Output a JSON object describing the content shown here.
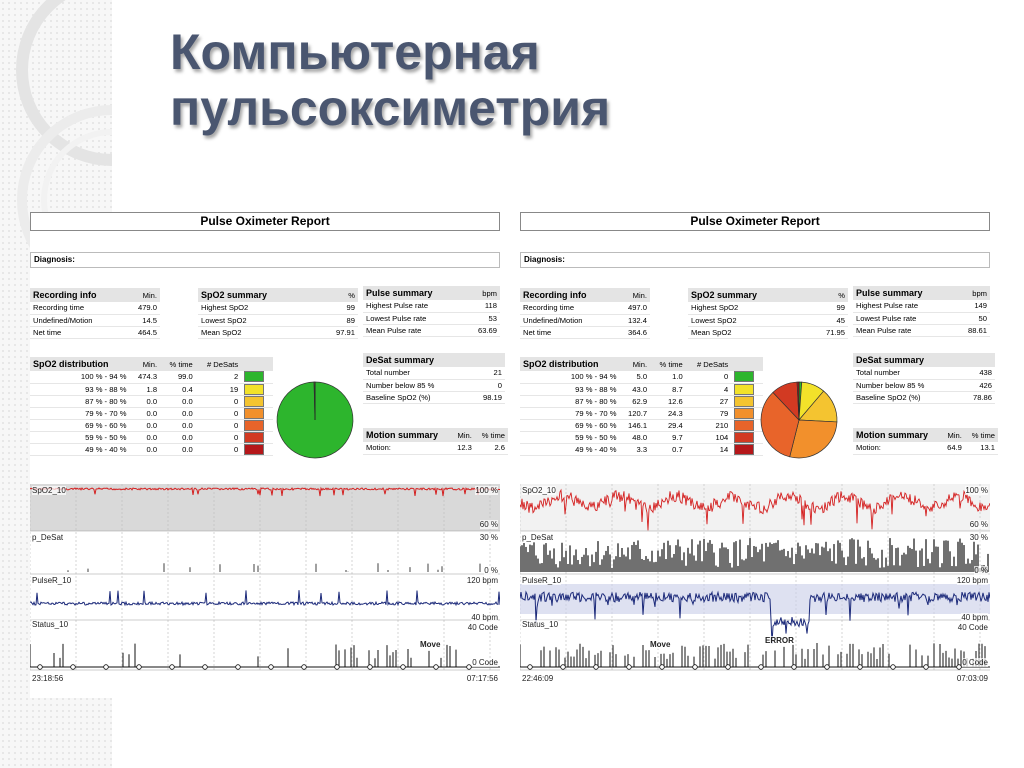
{
  "slide": {
    "title": "Компьютерная пульсоксиметрия"
  },
  "colors": {
    "title": "#4a5670",
    "spo2_trace": "#d42020",
    "pulse_trace": "#1c2a7a"
  },
  "distribution_swatches": [
    "#2db52d",
    "#f2e22a",
    "#f4c430",
    "#f2902c",
    "#e8642a",
    "#d23a22",
    "#b5171a"
  ],
  "reports": [
    {
      "title": "Pulse Oximeter Report",
      "diagnosis_label": "Diagnosis:",
      "recording": {
        "header": "Recording info",
        "unit": "Min.",
        "rows": [
          {
            "label": "Recording time",
            "value": "479.0"
          },
          {
            "label": "Undefined/Motion",
            "value": "14.5"
          },
          {
            "label": "Net time",
            "value": "464.5"
          }
        ]
      },
      "spo2": {
        "header": "SpO2 summary",
        "unit": "%",
        "rows": [
          {
            "label": "Highest SpO2",
            "value": "99"
          },
          {
            "label": "Lowest SpO2",
            "value": "89"
          },
          {
            "label": "Mean SpO2",
            "value": "97.91"
          }
        ]
      },
      "pulse": {
        "header": "Pulse summary",
        "unit": "bpm",
        "rows": [
          {
            "label": "Highest Pulse rate",
            "value": "118"
          },
          {
            "label": "Lowest Pulse rate",
            "value": "53"
          },
          {
            "label": "Mean Pulse rate",
            "value": "63.69"
          }
        ]
      },
      "distribution": {
        "header": "SpO2 distribution",
        "col_min": "Min.",
        "col_time": "% time",
        "col_desats": "# DeSats",
        "rows": [
          {
            "range": "100 % - 94 %",
            "min": "474.3",
            "time": "99.0",
            "desats": "2"
          },
          {
            "range": "93 % - 88 %",
            "min": "1.8",
            "time": "0.4",
            "desats": "19"
          },
          {
            "range": "87 % - 80 %",
            "min": "0.0",
            "time": "0.0",
            "desats": "0"
          },
          {
            "range": "79 % - 70 %",
            "min": "0.0",
            "time": "0.0",
            "desats": "0"
          },
          {
            "range": "69 % - 60 %",
            "min": "0.0",
            "time": "0.0",
            "desats": "0"
          },
          {
            "range": "59 % - 50 %",
            "min": "0.0",
            "time": "0.0",
            "desats": "0"
          },
          {
            "range": "49 % - 40 %",
            "min": "0.0",
            "time": "0.0",
            "desats": "0"
          }
        ]
      },
      "desat": {
        "header": "DeSat summary",
        "rows": [
          {
            "label": "Total number",
            "value": "21"
          },
          {
            "label": "Number below 85 %",
            "value": "0"
          },
          {
            "label": "Baseline SpO2 (%)",
            "value": "98.19"
          }
        ]
      },
      "motion": {
        "header": "Motion summary",
        "col_min": "Min.",
        "col_time": "% time",
        "label": "Motion:",
        "min": "12.3",
        "time": "2.6"
      },
      "traces": {
        "spo2": "SpO2_10",
        "spo2_top": "100 %",
        "spo2_bottom": "60 %",
        "desat": "p_DeSat",
        "desat_top": "30 %",
        "desat_bottom": "0 %",
        "pulse": "PulseR_10",
        "pulse_top": "120 bpm",
        "pulse_bottom": "40 bpm",
        "status": "Status_10",
        "code": "40 Code",
        "move": "Move",
        "code_bottom": "0 Code",
        "time_start": "23:18:56",
        "time_end": "07:17:56"
      }
    },
    {
      "title": "Pulse Oximeter Report",
      "diagnosis_label": "Diagnosis:",
      "recording": {
        "header": "Recording info",
        "unit": "Min.",
        "rows": [
          {
            "label": "Recording time",
            "value": "497.0"
          },
          {
            "label": "Undefined/Motion",
            "value": "132.4"
          },
          {
            "label": "Net time",
            "value": "364.6"
          }
        ]
      },
      "spo2": {
        "header": "SpO2 summary",
        "unit": "%",
        "rows": [
          {
            "label": "Highest SpO2",
            "value": "99"
          },
          {
            "label": "Lowest SpO2",
            "value": "45"
          },
          {
            "label": "Mean SpO2",
            "value": "71.95"
          }
        ]
      },
      "pulse": {
        "header": "Pulse summary",
        "unit": "bpm",
        "rows": [
          {
            "label": "Highest Pulse rate",
            "value": "149"
          },
          {
            "label": "Lowest Pulse rate",
            "value": "50"
          },
          {
            "label": "Mean Pulse rate",
            "value": "88.61"
          }
        ]
      },
      "distribution": {
        "header": "SpO2 distribution",
        "col_min": "Min.",
        "col_time": "% time",
        "col_desats": "# DeSats",
        "rows": [
          {
            "range": "100 % - 94 %",
            "min": "5.0",
            "time": "1.0",
            "desats": "0"
          },
          {
            "range": "93 % - 88 %",
            "min": "43.0",
            "time": "8.7",
            "desats": "4"
          },
          {
            "range": "87 % - 80 %",
            "min": "62.9",
            "time": "12.6",
            "desats": "27"
          },
          {
            "range": "79 % - 70 %",
            "min": "120.7",
            "time": "24.3",
            "desats": "79"
          },
          {
            "range": "69 % - 60 %",
            "min": "146.1",
            "time": "29.4",
            "desats": "210"
          },
          {
            "range": "59 % - 50 %",
            "min": "48.0",
            "time": "9.7",
            "desats": "104"
          },
          {
            "range": "49 % - 40 %",
            "min": "3.3",
            "time": "0.7",
            "desats": "14"
          }
        ]
      },
      "desat": {
        "header": "DeSat summary",
        "rows": [
          {
            "label": "Total number",
            "value": "438"
          },
          {
            "label": "Number below 85 %",
            "value": "426"
          },
          {
            "label": "Baseline SpO2 (%)",
            "value": "78.86"
          }
        ]
      },
      "motion": {
        "header": "Motion summary",
        "col_min": "Min.",
        "col_time": "% time",
        "label": "Motion:",
        "min": "64.9",
        "time": "13.1"
      },
      "traces": {
        "spo2": "SpO2_10",
        "spo2_top": "100 %",
        "spo2_bottom": "60 %",
        "desat": "p_DeSat",
        "desat_top": "30 %",
        "desat_bottom": "0 %",
        "pulse": "PulseR_10",
        "pulse_top": "120 bpm",
        "pulse_bottom": "40 bpm",
        "status": "Status_10",
        "code": "40 Code",
        "move": "Move",
        "error": "ERROR",
        "code_bottom": "0 Code",
        "time_start": "22:46:09",
        "time_end": "07:03:09"
      }
    }
  ]
}
